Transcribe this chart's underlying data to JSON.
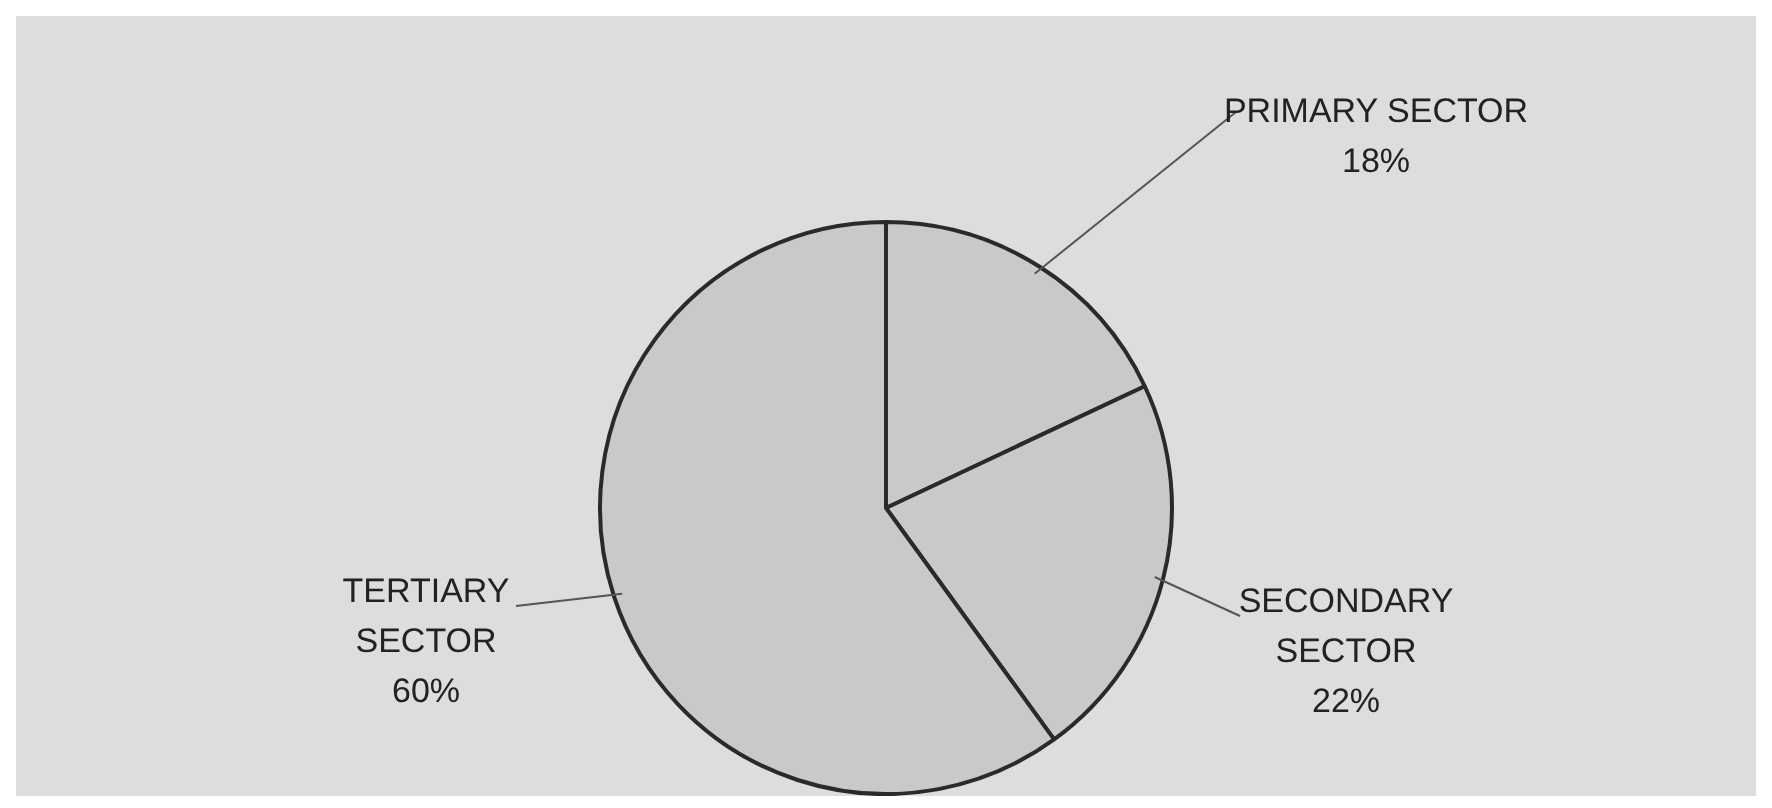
{
  "chart_data": {
    "type": "pie",
    "categories": [
      "PRIMARY SECTOR",
      "SECONDARY SECTOR",
      "TERTIARY SECTOR"
    ],
    "values": [
      18,
      22,
      60
    ],
    "colors": [
      "#c9c9c7",
      "#c9c9c7",
      "#c9c9c7"
    ],
    "value_labels": [
      "18%",
      "22%",
      "60%"
    ],
    "legend": false
  }
}
